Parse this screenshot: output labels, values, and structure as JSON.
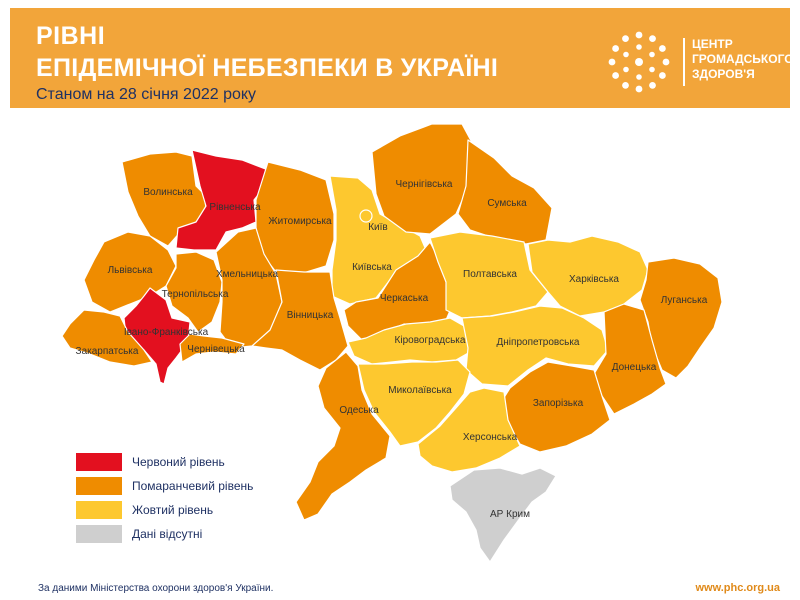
{
  "header": {
    "title_line1": "РІВНІ",
    "title_line2": "ЕПІДЕМІЧНОЇ НЕБЕЗПЕКИ В УКРАЇНІ",
    "subtitle": "Станом на 28 січня 2022 року"
  },
  "logo": {
    "line1": "ЦЕНТР",
    "line2": "ГРОМАДСЬКОГО",
    "line3": "ЗДОРОВ'Я",
    "icon": "phc-dots-logo-icon"
  },
  "colors": {
    "red": "#e3101f",
    "orange": "#ef8c00",
    "yellow": "#fdc82f",
    "gray": "#cfcfcf",
    "header": "#f2a53a",
    "text_dark": "#1f3163"
  },
  "regions": [
    {
      "name": "Волинська",
      "level": "orange"
    },
    {
      "name": "Рівненська",
      "level": "red"
    },
    {
      "name": "Житомирська",
      "level": "orange"
    },
    {
      "name": "Київ",
      "level": "yellow"
    },
    {
      "name": "Київська",
      "level": "yellow"
    },
    {
      "name": "Чернігівська",
      "level": "orange"
    },
    {
      "name": "Сумська",
      "level": "orange"
    },
    {
      "name": "Львівська",
      "level": "orange"
    },
    {
      "name": "Хмельницька",
      "level": "orange"
    },
    {
      "name": "Тернопільська",
      "level": "orange"
    },
    {
      "name": "Івано-Франківська",
      "level": "red"
    },
    {
      "name": "Закарпатська",
      "level": "orange"
    },
    {
      "name": "Чернівецька",
      "level": "orange"
    },
    {
      "name": "Вінницька",
      "level": "orange"
    },
    {
      "name": "Черкаська",
      "level": "orange"
    },
    {
      "name": "Полтавська",
      "level": "yellow"
    },
    {
      "name": "Харківська",
      "level": "yellow"
    },
    {
      "name": "Луганська",
      "level": "orange"
    },
    {
      "name": "Кіровоградська",
      "level": "yellow"
    },
    {
      "name": "Дніпропетровська",
      "level": "yellow"
    },
    {
      "name": "Донецька",
      "level": "orange"
    },
    {
      "name": "Одеська",
      "level": "orange"
    },
    {
      "name": "Миколаївська",
      "level": "yellow"
    },
    {
      "name": "Запорізька",
      "level": "orange"
    },
    {
      "name": "Херсонська",
      "level": "yellow"
    },
    {
      "name": "АР Крим",
      "level": "gray"
    }
  ],
  "legend": [
    {
      "label": "Червоний рівень",
      "color": "#e3101f"
    },
    {
      "label": "Помаранчевий рівень",
      "color": "#ef8c00"
    },
    {
      "label": "Жовтий рівень",
      "color": "#fdc82f"
    },
    {
      "label": "Дані відсутні",
      "color": "#cfcfcf"
    }
  ],
  "footer": {
    "source": "За даними Міністерства охорони здоров'я України.",
    "url": "www.phc.org.ua"
  }
}
